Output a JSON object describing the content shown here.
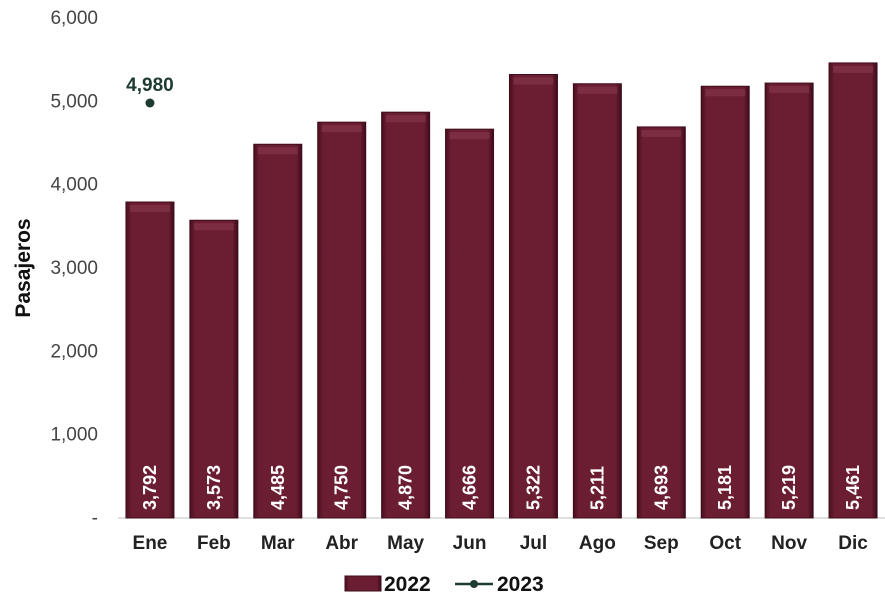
{
  "chart_data": {
    "type": "bar",
    "ylabel": "Pasajeros",
    "ylim": [
      0,
      6000
    ],
    "yticks": [
      0,
      1000,
      2000,
      3000,
      4000,
      5000,
      6000
    ],
    "ytick_labels": [
      "-",
      "1,000",
      "2,000",
      "3,000",
      "4,000",
      "5,000",
      "6,000"
    ],
    "categories": [
      "Ene",
      "Feb",
      "Mar",
      "Abr",
      "May",
      "Jun",
      "Jul",
      "Ago",
      "Sep",
      "Oct",
      "Nov",
      "Dic"
    ],
    "series": [
      {
        "name": "2022",
        "kind": "bar",
        "color": "#6b1e32",
        "values": [
          3792,
          3573,
          4485,
          4750,
          4870,
          4666,
          5322,
          5211,
          4693,
          5181,
          5219,
          5461
        ],
        "value_labels": [
          "3,792",
          "3,573",
          "4,485",
          "4,750",
          "4,870",
          "4,666",
          "5,322",
          "5,211",
          "4,693",
          "5,181",
          "5,219",
          "5,461"
        ]
      },
      {
        "name": "2023",
        "kind": "line",
        "color": "#1e3b30",
        "values": [
          4980,
          null,
          null,
          null,
          null,
          null,
          null,
          null,
          null,
          null,
          null,
          null
        ],
        "value_labels": [
          "4,980",
          null,
          null,
          null,
          null,
          null,
          null,
          null,
          null,
          null,
          null,
          null
        ]
      }
    ],
    "grid": false,
    "legend": "bottom"
  }
}
